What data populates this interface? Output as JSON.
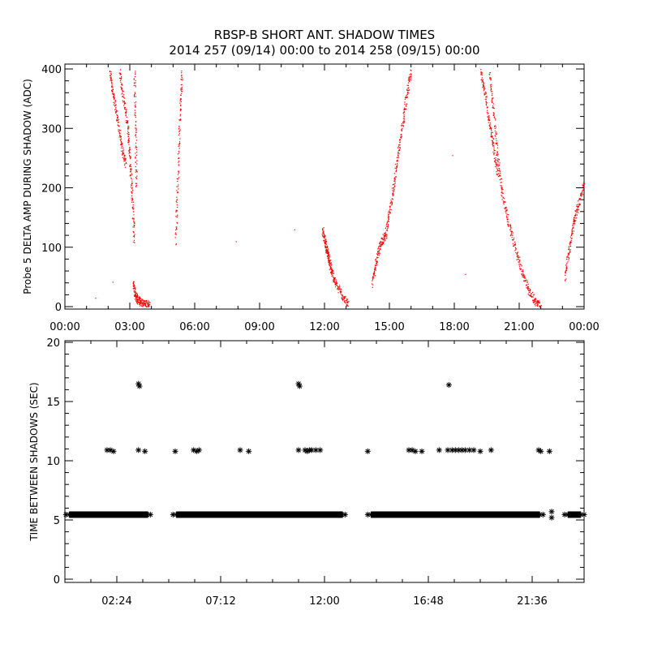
{
  "title_line1": "RBSP-B SHORT ANT. SHADOW TIMES",
  "title_line2": "2014 257 (09/14) 00:00 to 2014 258 (09/15) 00:00",
  "colors": {
    "amp_points": "#ff0000",
    "interval_points": "#000000",
    "axes": "#000000",
    "background": "#ffffff"
  },
  "chart_data": [
    {
      "type": "scatter",
      "ylabel": "Probe 5 DELTA AMP DURING SHADOW (ADC)",
      "xlim_hours": [
        0,
        24
      ],
      "ylim": [
        0,
        400
      ],
      "xticks": [
        "00:00",
        "03:00",
        "06:00",
        "09:00",
        "12:00",
        "15:00",
        "18:00",
        "21:00",
        "00:00"
      ],
      "yticks": [
        "0",
        "100",
        "200",
        "300",
        "400"
      ],
      "marker": "dot",
      "segments": [
        {
          "x": [
            2.05,
            2.2,
            2.4,
            2.6,
            2.8
          ],
          "y": [
            400,
            360,
            320,
            270,
            240
          ]
        },
        {
          "x": [
            2.5,
            2.7,
            2.9,
            3.0,
            3.1,
            3.2
          ],
          "y": [
            400,
            350,
            300,
            240,
            180,
            110
          ]
        },
        {
          "x": [
            3.15,
            3.25,
            3.35,
            3.5,
            3.7,
            3.9
          ],
          "y": [
            40,
            20,
            12,
            8,
            5,
            3
          ]
        },
        {
          "x": [
            3.2,
            3.25,
            3.3
          ],
          "y": [
            400,
            300,
            200
          ]
        },
        {
          "x": [
            5.1,
            5.2,
            5.3,
            5.4
          ],
          "y": [
            110,
            220,
            320,
            400
          ]
        },
        {
          "x": [
            11.9,
            12.0,
            12.1,
            12.2,
            12.3,
            12.5,
            12.8,
            13.1
          ],
          "y": [
            130,
            110,
            95,
            80,
            60,
            40,
            20,
            2
          ]
        },
        {
          "x": [
            14.2,
            14.4,
            14.6,
            14.8,
            15.0,
            15.2,
            15.4,
            15.6,
            15.8,
            16.0
          ],
          "y": [
            40,
            80,
            110,
            120,
            160,
            210,
            260,
            310,
            360,
            400
          ]
        },
        {
          "x": [
            19.2,
            19.4,
            19.6,
            19.8,
            20.0
          ],
          "y": [
            400,
            360,
            310,
            270,
            220
          ]
        },
        {
          "x": [
            19.6,
            19.8,
            20.0,
            20.2,
            20.5,
            20.8,
            21.1,
            21.4,
            21.7,
            22.0
          ],
          "y": [
            400,
            330,
            250,
            190,
            140,
            100,
            60,
            30,
            10,
            2
          ]
        },
        {
          "x": [
            23.1,
            23.3,
            23.5,
            23.7,
            24.0
          ],
          "y": [
            50,
            100,
            140,
            170,
            210
          ]
        }
      ],
      "isolated_points": [
        {
          "x": 1.4,
          "y": 15
        },
        {
          "x": 7.9,
          "y": 110
        },
        {
          "x": 10.6,
          "y": 130
        },
        {
          "x": 17.9,
          "y": 255
        },
        {
          "x": 18.5,
          "y": 55
        },
        {
          "x": 2.2,
          "y": 42
        }
      ]
    },
    {
      "type": "scatter",
      "ylabel": "TIME BETWEEN SHADOWS (SEC)",
      "xlim_hours": [
        0,
        24
      ],
      "ylim": [
        0,
        20
      ],
      "xticks": [
        "02:24",
        "07:12",
        "12:00",
        "16:48",
        "21:36"
      ],
      "yticks": [
        "0",
        "5",
        "10",
        "15",
        "20"
      ],
      "marker": "asterisk",
      "baseline_value": 5.45,
      "baseline_ranges_hours": [
        [
          0.05,
          4.0
        ],
        [
          5.0,
          13.0
        ],
        [
          14.0,
          22.1
        ],
        [
          23.1,
          24.0
        ]
      ],
      "points": [
        {
          "x": 1.95,
          "y": 10.9
        },
        {
          "x": 2.1,
          "y": 10.9
        },
        {
          "x": 2.25,
          "y": 10.8
        },
        {
          "x": 3.4,
          "y": 16.5
        },
        {
          "x": 3.45,
          "y": 16.3
        },
        {
          "x": 3.4,
          "y": 10.9
        },
        {
          "x": 3.7,
          "y": 10.8
        },
        {
          "x": 5.1,
          "y": 10.8
        },
        {
          "x": 5.95,
          "y": 10.9
        },
        {
          "x": 6.1,
          "y": 10.8
        },
        {
          "x": 6.2,
          "y": 10.9
        },
        {
          "x": 8.1,
          "y": 10.9
        },
        {
          "x": 8.5,
          "y": 10.8
        },
        {
          "x": 10.8,
          "y": 16.5
        },
        {
          "x": 10.85,
          "y": 16.3
        },
        {
          "x": 10.8,
          "y": 10.9
        },
        {
          "x": 11.1,
          "y": 10.9
        },
        {
          "x": 11.2,
          "y": 10.8
        },
        {
          "x": 11.3,
          "y": 10.9
        },
        {
          "x": 11.4,
          "y": 10.9
        },
        {
          "x": 11.6,
          "y": 10.9
        },
        {
          "x": 11.8,
          "y": 10.9
        },
        {
          "x": 14.0,
          "y": 10.8
        },
        {
          "x": 15.9,
          "y": 10.9
        },
        {
          "x": 16.05,
          "y": 10.9
        },
        {
          "x": 16.2,
          "y": 10.8
        },
        {
          "x": 16.5,
          "y": 10.8
        },
        {
          "x": 17.3,
          "y": 10.9
        },
        {
          "x": 17.7,
          "y": 10.9
        },
        {
          "x": 17.75,
          "y": 16.4
        },
        {
          "x": 17.9,
          "y": 10.9
        },
        {
          "x": 18.05,
          "y": 10.9
        },
        {
          "x": 18.2,
          "y": 10.9
        },
        {
          "x": 18.35,
          "y": 10.9
        },
        {
          "x": 18.5,
          "y": 10.9
        },
        {
          "x": 18.7,
          "y": 10.9
        },
        {
          "x": 18.9,
          "y": 10.9
        },
        {
          "x": 19.2,
          "y": 10.8
        },
        {
          "x": 19.7,
          "y": 10.9
        },
        {
          "x": 21.9,
          "y": 10.9
        },
        {
          "x": 22.0,
          "y": 10.8
        },
        {
          "x": 22.4,
          "y": 10.8
        },
        {
          "x": 22.5,
          "y": 5.7
        },
        {
          "x": 22.5,
          "y": 5.2
        }
      ]
    }
  ]
}
